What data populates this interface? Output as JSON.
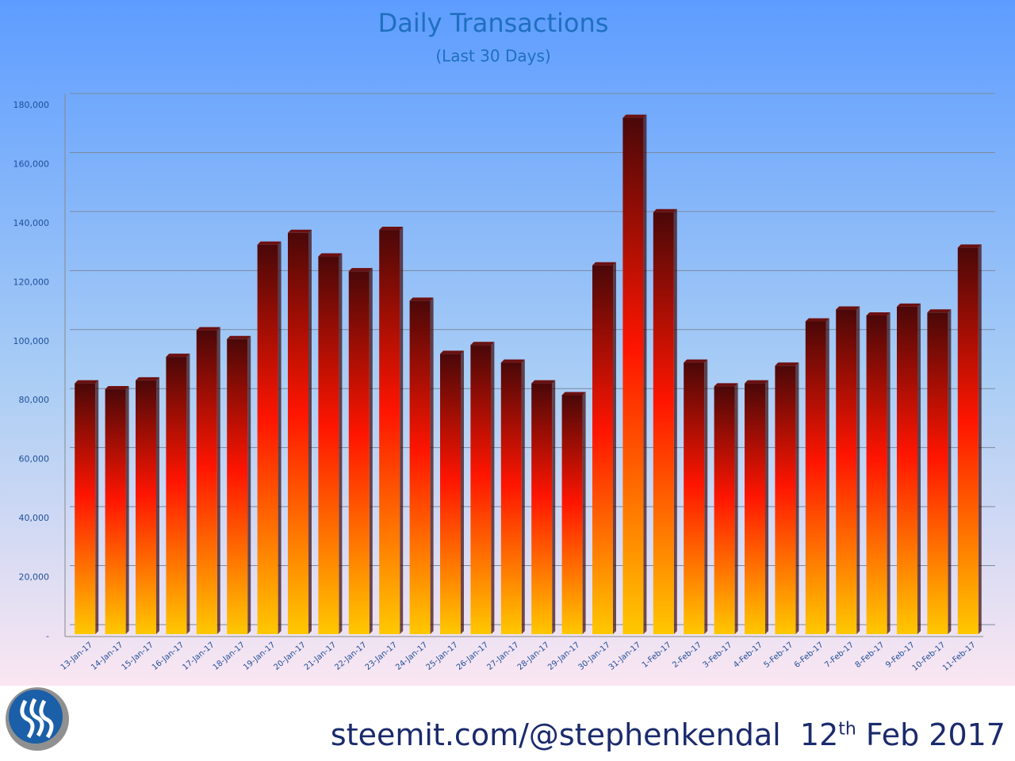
{
  "chart_data": {
    "type": "bar",
    "title": "Daily Transactions",
    "subtitle": "(Last 30 Days)",
    "categories": [
      "13-Jan-17",
      "14-Jan-17",
      "15-Jan-17",
      "16-Jan-17",
      "17-Jan-17",
      "18-Jan-17",
      "19-Jan-17",
      "20-Jan-17",
      "21-Jan-17",
      "22-Jan-17",
      "23-Jan-17",
      "24-Jan-17",
      "25-Jan-17",
      "26-Jan-17",
      "27-Jan-17",
      "28-Jan-17",
      "29-Jan-17",
      "30-Jan-17",
      "31-Jan-17",
      "1-Feb-17",
      "2-Feb-17",
      "3-Feb-17",
      "4-Feb-17",
      "5-Feb-17",
      "6-Feb-17",
      "7-Feb-17",
      "8-Feb-17",
      "9-Feb-17",
      "10-Feb-17",
      "11-Feb-17"
    ],
    "values": [
      85000,
      83000,
      86000,
      94000,
      103000,
      100000,
      132000,
      136000,
      128000,
      123000,
      137000,
      113000,
      95000,
      98000,
      92000,
      85000,
      81000,
      125000,
      175000,
      143000,
      92000,
      84000,
      85000,
      91000,
      106000,
      110000,
      108000,
      111000,
      109000,
      131000
    ],
    "ylim": [
      0,
      180000
    ],
    "yticks": [
      {
        "value": 0,
        "label": "-"
      },
      {
        "value": 20000,
        "label": "20,000"
      },
      {
        "value": 40000,
        "label": "40,000"
      },
      {
        "value": 60000,
        "label": "60,000"
      },
      {
        "value": 80000,
        "label": "80,000"
      },
      {
        "value": 100000,
        "label": "100,000"
      },
      {
        "value": 120000,
        "label": "120,000"
      },
      {
        "value": 140000,
        "label": "140,000"
      },
      {
        "value": 160000,
        "label": "160,000"
      },
      {
        "value": 180000,
        "label": "180,000"
      }
    ],
    "grid": true
  },
  "footer": {
    "site": "steemit.com/@stephenkendal",
    "day": "12",
    "suffix": "th",
    "rest": "Feb 2017"
  }
}
